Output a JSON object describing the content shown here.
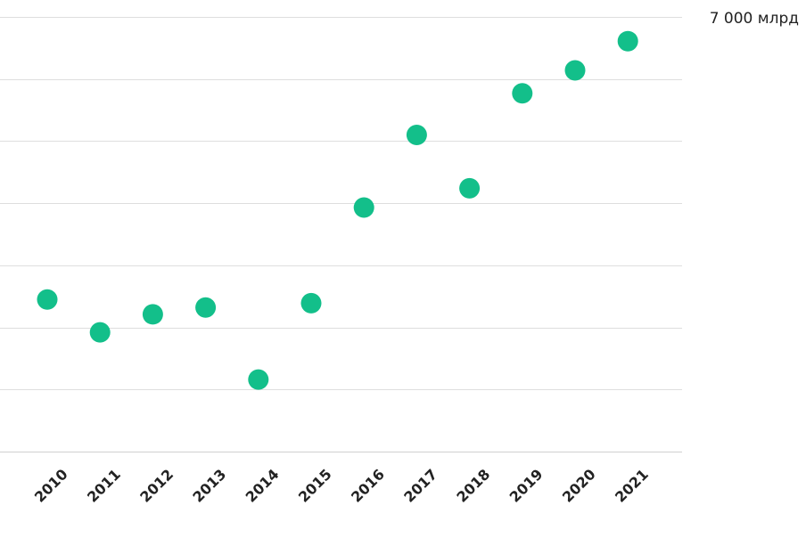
{
  "chart_data": {
    "type": "scatter",
    "categories": [
      "2010",
      "2011",
      "2012",
      "2013",
      "2014",
      "2015",
      "2016",
      "2017",
      "2018",
      "2019",
      "2020",
      "2021"
    ],
    "series": [
      {
        "values": [
          2450,
          1920,
          2210,
          2320,
          1160,
          2390,
          3930,
          5100,
          4240,
          5770,
          6140,
          6610
        ]
      }
    ],
    "ylim": [
      0,
      7000
    ],
    "y_gridlines": [
      0,
      1000,
      2000,
      3000,
      4000,
      5000,
      6000,
      7000
    ],
    "y_top_label": "7 000 млрд",
    "grid": true,
    "legend": "none",
    "color": "#13bf8a"
  }
}
